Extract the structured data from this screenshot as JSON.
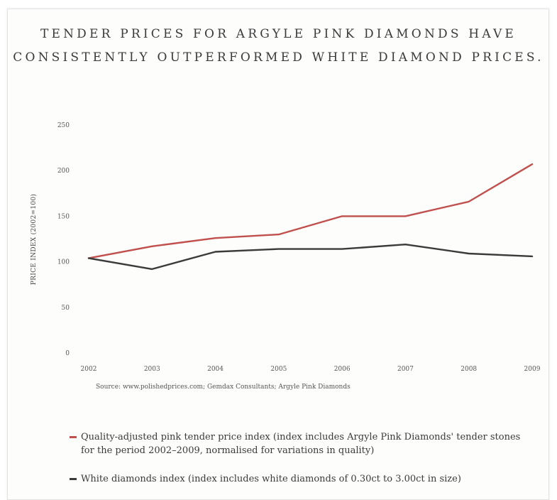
{
  "chart_data": {
    "type": "line",
    "title_lines": [
      "TENDER PRICES FOR ARGYLE PINK DIAMONDS HAVE",
      "CONSISTENTLY OUTPERFORMED WHITE DIAMOND PRICES."
    ],
    "ylabel": "PRICE INDEX (2002=100)",
    "x": [
      "2002",
      "2003",
      "2004",
      "2005",
      "2006",
      "2007",
      "2008",
      "2009"
    ],
    "y_ticks": [
      "0",
      "50",
      "100",
      "150",
      "200",
      "250"
    ],
    "ylim": [
      0,
      250
    ],
    "grid": false,
    "legend_placement": "bottom",
    "series": [
      {
        "name": "Quality-adjusted pink tender price index (index includes Argyle Pink Diamonds' tender stones for the period 2002–2009, normalised for variations in quality)",
        "color": "#c0504d",
        "values": [
          104,
          117,
          126,
          130,
          150,
          150,
          166,
          207
        ]
      },
      {
        "name": "White diamonds index (index includes white diamonds of 0.30ct to 3.00ct in size)",
        "color": "#3b3b3b",
        "values": [
          104,
          92,
          111,
          114,
          114,
          119,
          109,
          106
        ]
      }
    ],
    "source": "Source: www.polishedprices.com; Gemdax Consultants; Argyle Pink Diamonds"
  }
}
